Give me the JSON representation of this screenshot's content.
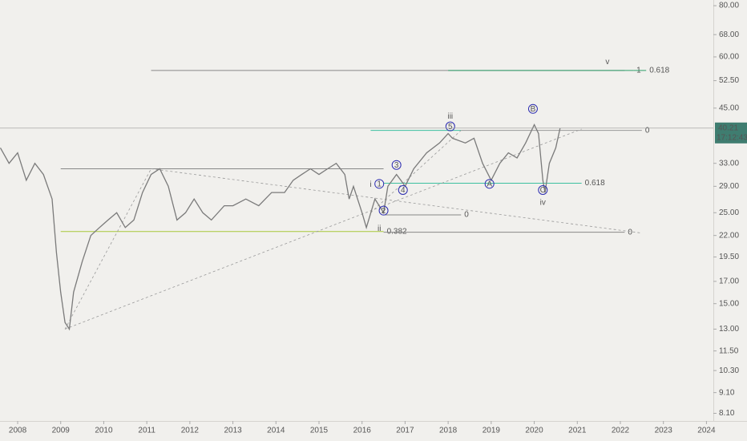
{
  "chart_data": {
    "type": "line",
    "log_scale": true,
    "grid": false,
    "color": "#7a7a7a",
    "x": [
      2007.6,
      2007.8,
      2008.0,
      2008.2,
      2008.4,
      2008.6,
      2008.8,
      2008.9,
      2009.0,
      2009.1,
      2009.2,
      2009.3,
      2009.5,
      2009.7,
      2009.9,
      2010.1,
      2010.3,
      2010.5,
      2010.7,
      2010.9,
      2011.1,
      2011.3,
      2011.5,
      2011.7,
      2011.9,
      2012.1,
      2012.3,
      2012.5,
      2012.8,
      2013.0,
      2013.3,
      2013.6,
      2013.9,
      2014.2,
      2014.4,
      2014.6,
      2014.8,
      2015.0,
      2015.2,
      2015.4,
      2015.6,
      2015.7,
      2015.8,
      2016.0,
      2016.1,
      2016.3,
      2016.5,
      2016.6,
      2016.8,
      2016.9,
      2017.0,
      2017.2,
      2017.5,
      2017.8,
      2018.0,
      2018.1,
      2018.4,
      2018.6,
      2018.8,
      2019.0,
      2019.2,
      2019.4,
      2019.6,
      2019.8,
      2020.0,
      2020.1,
      2020.2,
      2020.25,
      2020.35,
      2020.5,
      2020.6
    ],
    "values": [
      36,
      33,
      35,
      30,
      33,
      31,
      27,
      20,
      16,
      13.5,
      13,
      16,
      19,
      22,
      23,
      24,
      25,
      23,
      24,
      28,
      31,
      32,
      29,
      24,
      25,
      27,
      25,
      24,
      26,
      26,
      27,
      26,
      28,
      28,
      30,
      31,
      32,
      31,
      32,
      33,
      31,
      27,
      29,
      25,
      23,
      27,
      25,
      29,
      31,
      30,
      29,
      32,
      35,
      37,
      39,
      38,
      37,
      38,
      33,
      30,
      33,
      35,
      34,
      37,
      41,
      39,
      30,
      28,
      33,
      36,
      40.2
    ],
    "xlim": [
      2007.59,
      2024.16
    ],
    "ylim": [
      7.76,
      82.6
    ],
    "xticks": [
      2008,
      2009,
      2010,
      2011,
      2012,
      2013,
      2014,
      2015,
      2016,
      2017,
      2018,
      2019,
      2020,
      2021,
      2022,
      2023,
      2024
    ],
    "yticks": [
      {
        "value": 80,
        "label": "80.00"
      },
      {
        "value": 68,
        "label": "68.00"
      },
      {
        "value": 60,
        "label": "60.00"
      },
      {
        "value": 52.5,
        "label": "52.50"
      },
      {
        "value": 45,
        "label": "45.00"
      },
      {
        "value": 33,
        "label": "33.00"
      },
      {
        "value": 29,
        "label": "29.00"
      },
      {
        "value": 25,
        "label": "25.00"
      },
      {
        "value": 22,
        "label": "22.00"
      },
      {
        "value": 19.5,
        "label": "19.50"
      },
      {
        "value": 17,
        "label": "17.00"
      },
      {
        "value": 15,
        "label": "15.00"
      },
      {
        "value": 13,
        "label": "13.00"
      },
      {
        "value": 11.5,
        "label": "11.50"
      },
      {
        "value": 10.3,
        "label": "10.30"
      },
      {
        "value": 9.1,
        "label": "9.10"
      },
      {
        "value": 8.1,
        "label": "8.10"
      }
    ],
    "last_price": {
      "value": 40.21,
      "label": "40.21"
    },
    "countdown": "17:12:43",
    "levels": [
      {
        "x1": 2011.1,
        "x2": 2022.1,
        "y": 55.6,
        "color": "#888888"
      },
      {
        "x1": 2018.0,
        "x2": 2022.3,
        "y": 55.6,
        "color": "#2e9e6a",
        "label": "1"
      },
      {
        "x1": 2022.3,
        "x2": 2022.6,
        "y": 55.6,
        "color": "#2e9e6a",
        "label": "0.618"
      },
      {
        "x1": 2016.2,
        "x2": 2018.3,
        "y": 39.7,
        "color": "#3cc0a0"
      },
      {
        "x1": 2018.3,
        "x2": 2022.5,
        "y": 39.7,
        "color": "#999999",
        "label": "0"
      },
      {
        "x1": 2009.0,
        "x2": 2016.5,
        "y": 32.0,
        "color": "#888888"
      },
      {
        "x1": 2016.5,
        "x2": 2021.1,
        "y": 29.5,
        "color": "#3cc0a0",
        "label": "0.618"
      },
      {
        "x1": 2016.5,
        "x2": 2018.3,
        "y": 24.7,
        "color": "#888888",
        "label": "0"
      },
      {
        "x1": 2009.0,
        "x2": 2016.5,
        "y": 22.5,
        "color": "#a8c83a",
        "label": "0.382"
      },
      {
        "x1": 2016.5,
        "x2": 2022.1,
        "y": 22.4,
        "color": "#888888",
        "label": "0"
      }
    ],
    "trendlines": [
      {
        "x": [
          2009.1,
          2011.1
        ],
        "y": [
          13,
          32
        ]
      },
      {
        "x": [
          2009.1,
          2021.1
        ],
        "y": [
          13,
          40
        ]
      },
      {
        "x": [
          2011.1,
          2022.5
        ],
        "y": [
          32,
          22.3
        ]
      },
      {
        "x": [
          2016.2,
          2018.3
        ],
        "y": [
          25,
          39.7
        ]
      }
    ],
    "annotations": [
      {
        "text": "v",
        "x": 2021.7,
        "y": 58.4,
        "circled": false
      },
      {
        "text": "iii",
        "x": 2018.05,
        "y": 43.0,
        "circled": false
      },
      {
        "text": "5",
        "x": 2018.05,
        "y": 40.6,
        "circled": true
      },
      {
        "text": "B",
        "x": 2019.97,
        "y": 44.8,
        "circled": true
      },
      {
        "text": "i",
        "x": 2016.2,
        "y": 29.3,
        "circled": false
      },
      {
        "text": "1",
        "x": 2016.4,
        "y": 29.4,
        "circled": true
      },
      {
        "text": "3",
        "x": 2016.8,
        "y": 32.7,
        "circled": true
      },
      {
        "text": "4",
        "x": 2016.95,
        "y": 28.4,
        "circled": true
      },
      {
        "text": "2",
        "x": 2016.5,
        "y": 25.3,
        "circled": true
      },
      {
        "text": "ii",
        "x": 2016.4,
        "y": 22.9,
        "circled": false
      },
      {
        "text": "A",
        "x": 2018.96,
        "y": 29.4,
        "circled": true
      },
      {
        "text": "C",
        "x": 2020.2,
        "y": 28.4,
        "circled": true
      },
      {
        "text": "iv",
        "x": 2020.2,
        "y": 26.5,
        "circled": false
      }
    ]
  }
}
